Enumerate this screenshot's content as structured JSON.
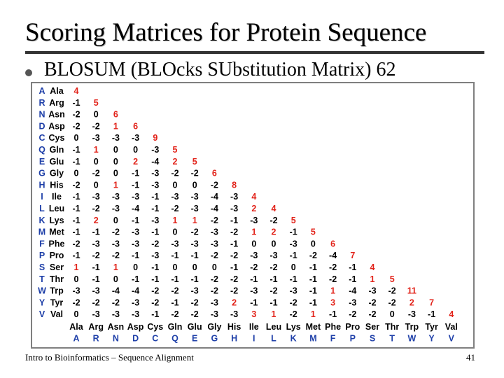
{
  "slide": {
    "title": "Scoring Matrices for Protein Sequence",
    "bullet": "BLOSUM (BLOcks SUbstitution Matrix) 62",
    "footer": "Intro to Bioinformatics – Sequence Alignment",
    "page_number": "41"
  },
  "colors": {
    "positive": "#e2231a",
    "zero_negative": "#000000",
    "letter_col": "#1e3fa8",
    "abbr": "#000000"
  },
  "matrix": {
    "letters": [
      "A",
      "R",
      "N",
      "D",
      "C",
      "Q",
      "E",
      "G",
      "H",
      "I",
      "L",
      "K",
      "M",
      "F",
      "P",
      "S",
      "T",
      "W",
      "Y",
      "V"
    ],
    "abbrs": [
      "Ala",
      "Arg",
      "Asn",
      "Asp",
      "Cys",
      "Gln",
      "Glu",
      "Gly",
      "His",
      "Ile",
      "Leu",
      "Lys",
      "Met",
      "Phe",
      "Pro",
      "Ser",
      "Thr",
      "Trp",
      "Tyr",
      "Val"
    ],
    "rows": [
      [
        "4"
      ],
      [
        "-1",
        "5"
      ],
      [
        "-2",
        "0",
        "6"
      ],
      [
        "-2",
        "-2",
        "1",
        "6"
      ],
      [
        "0",
        "-3",
        "-3",
        "-3",
        "9"
      ],
      [
        "-1",
        "1",
        "0",
        "0",
        "-3",
        "5"
      ],
      [
        "-1",
        "0",
        "0",
        "2",
        "-4",
        "2",
        "5"
      ],
      [
        "0",
        "-2",
        "0",
        "-1",
        "-3",
        "-2",
        "-2",
        "6"
      ],
      [
        "-2",
        "0",
        "1",
        "-1",
        "-3",
        "0",
        "0",
        "-2",
        "8"
      ],
      [
        "-1",
        "-3",
        "-3",
        "-3",
        "-1",
        "-3",
        "-3",
        "-4",
        "-3",
        "4"
      ],
      [
        "-1",
        "-2",
        "-3",
        "-4",
        "-1",
        "-2",
        "-3",
        "-4",
        "-3",
        "2",
        "4"
      ],
      [
        "-1",
        "2",
        "0",
        "-1",
        "-3",
        "1",
        "1",
        "-2",
        "-1",
        "-3",
        "-2",
        "5"
      ],
      [
        "-1",
        "-1",
        "-2",
        "-3",
        "-1",
        "0",
        "-2",
        "-3",
        "-2",
        "1",
        "2",
        "-1",
        "5"
      ],
      [
        "-2",
        "-3",
        "-3",
        "-3",
        "-2",
        "-3",
        "-3",
        "-3",
        "-1",
        "0",
        "0",
        "-3",
        "0",
        "6"
      ],
      [
        "-1",
        "-2",
        "-2",
        "-1",
        "-3",
        "-1",
        "-1",
        "-2",
        "-2",
        "-3",
        "-3",
        "-1",
        "-2",
        "-4",
        "7"
      ],
      [
        "1",
        "-1",
        "1",
        "0",
        "-1",
        "0",
        "0",
        "0",
        "-1",
        "-2",
        "-2",
        "0",
        "-1",
        "-2",
        "-1",
        "4"
      ],
      [
        "0",
        "-1",
        "0",
        "-1",
        "-1",
        "-1",
        "-1",
        "-2",
        "-2",
        "-1",
        "-1",
        "-1",
        "-1",
        "-2",
        "-1",
        "1",
        "5"
      ],
      [
        "-3",
        "-3",
        "-4",
        "-4",
        "-2",
        "-2",
        "-3",
        "-2",
        "-2",
        "-3",
        "-2",
        "-3",
        "-1",
        "1",
        "-4",
        "-3",
        "-2",
        "11"
      ],
      [
        "-2",
        "-2",
        "-2",
        "-3",
        "-2",
        "-1",
        "-2",
        "-3",
        "2",
        "-1",
        "-1",
        "-2",
        "-1",
        "3",
        "-3",
        "-2",
        "-2",
        "2",
        "7"
      ],
      [
        "0",
        "-3",
        "-3",
        "-3",
        "-1",
        "-2",
        "-2",
        "-3",
        "-3",
        "3",
        "1",
        "-2",
        "1",
        "-1",
        "-2",
        "-2",
        "0",
        "-3",
        "-1",
        "4"
      ]
    ]
  }
}
